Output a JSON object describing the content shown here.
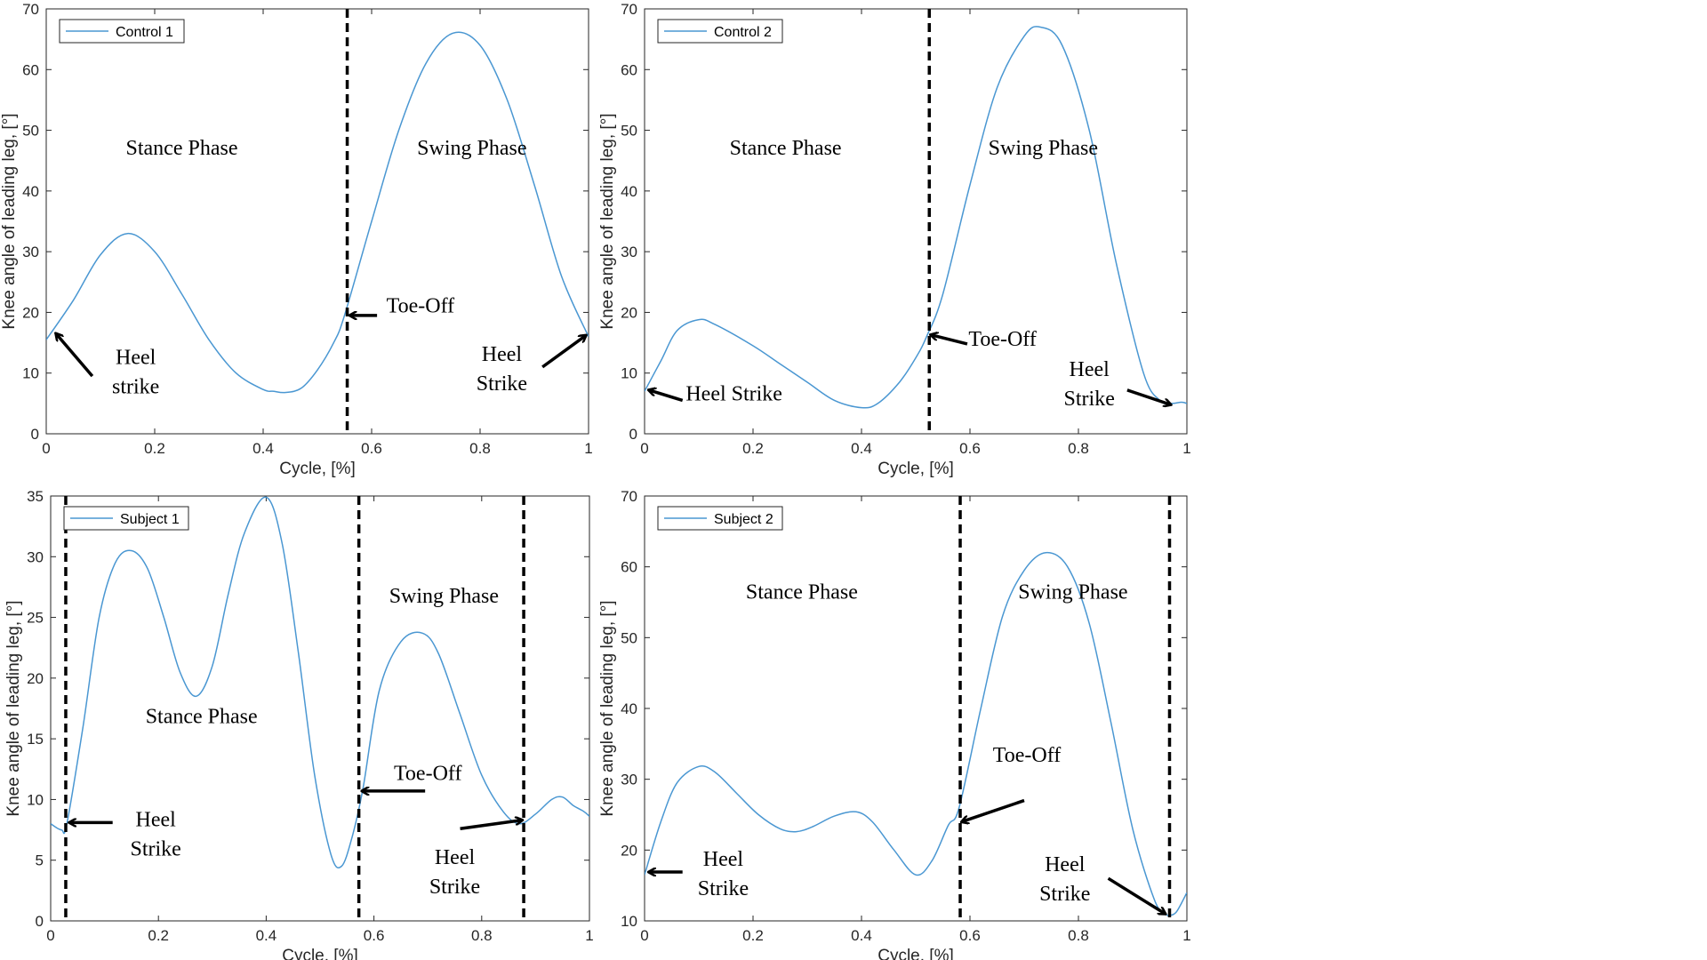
{
  "colors": {
    "line": "#4a97d2",
    "axis": "#262626",
    "annotation": "#000000"
  },
  "chart_data": [
    {
      "type": "line",
      "xlabel": "Cycle, [%]",
      "ylabel": "Knee angle of leading leg, [°]",
      "xlim": [
        0,
        1
      ],
      "ylim": [
        0,
        70
      ],
      "xticks": [
        0,
        0.2,
        0.4,
        0.6,
        0.8,
        1
      ],
      "xtick_labels": [
        "0",
        "0.2",
        "0.4",
        "0.6",
        "0.8",
        "1"
      ],
      "yticks": [
        0,
        10,
        20,
        30,
        40,
        50,
        60,
        70
      ],
      "ytick_labels": [
        "0",
        "10",
        "20",
        "30",
        "40",
        "50",
        "60",
        "70"
      ],
      "legend": "top-left",
      "grid": false,
      "series": [
        {
          "name": "Control 1",
          "x": [
            0,
            0.05,
            0.1,
            0.15,
            0.2,
            0.25,
            0.3,
            0.35,
            0.4,
            0.42,
            0.44,
            0.47,
            0.5,
            0.53,
            0.55,
            0.6,
            0.65,
            0.7,
            0.75,
            0.8,
            0.85,
            0.9,
            0.95,
            1.0
          ],
          "y": [
            15.5,
            22,
            29.5,
            33,
            30,
            23,
            15.5,
            10,
            7.3,
            7,
            6.8,
            7.5,
            10.5,
            15,
            19.5,
            35,
            50,
            61,
            66,
            64,
            55,
            41,
            26,
            16
          ]
        }
      ],
      "dividers": [
        0.555
      ],
      "annotations": [
        {
          "lines": [
            "Stance Phase"
          ],
          "x": 0.25,
          "y": 46
        },
        {
          "lines": [
            "Swing Phase"
          ],
          "x": 0.785,
          "y": 46
        },
        {
          "lines": [
            "Toe-Off"
          ],
          "x": 0.69,
          "y": 20
        },
        {
          "lines": [
            "Heel",
            "strike"
          ],
          "x": 0.165,
          "y": 11.5
        },
        {
          "lines": [
            "Heel",
            "Strike"
          ],
          "x": 0.84,
          "y": 12
        }
      ],
      "arrows": [
        {
          "from": [
            0.085,
            9.5
          ],
          "to": [
            0.018,
            16.5
          ]
        },
        {
          "from": [
            0.61,
            19.5
          ],
          "to": [
            0.56,
            19.5
          ]
        },
        {
          "from": [
            0.915,
            11
          ],
          "to": [
            0.995,
            16.2
          ]
        }
      ]
    },
    {
      "type": "line",
      "xlabel": "Cycle, [%]",
      "ylabel": "Knee angle of leading leg, [°]",
      "xlim": [
        0,
        1
      ],
      "ylim": [
        0,
        70
      ],
      "xticks": [
        0,
        0.2,
        0.4,
        0.6,
        0.8,
        1
      ],
      "xtick_labels": [
        "0",
        "0.2",
        "0.4",
        "0.6",
        "0.8",
        "1"
      ],
      "yticks": [
        0,
        10,
        20,
        30,
        40,
        50,
        60,
        70
      ],
      "ytick_labels": [
        "0",
        "10",
        "20",
        "30",
        "40",
        "50",
        "60",
        "70"
      ],
      "legend": "top-left",
      "grid": false,
      "series": [
        {
          "name": "Control 2",
          "x": [
            0,
            0.03,
            0.06,
            0.1,
            0.13,
            0.2,
            0.25,
            0.3,
            0.35,
            0.4,
            0.43,
            0.47,
            0.5,
            0.52,
            0.55,
            0.6,
            0.65,
            0.7,
            0.73,
            0.77,
            0.82,
            0.87,
            0.92,
            0.95,
            0.97,
            0.99,
            1.0
          ],
          "y": [
            7,
            12,
            17,
            18.8,
            18,
            14.5,
            11.5,
            8.5,
            5.5,
            4.3,
            5,
            8.5,
            12.5,
            16,
            23,
            41,
            57,
            65.5,
            67,
            64,
            50,
            28,
            10,
            5.5,
            5,
            5.2,
            5
          ]
        }
      ],
      "dividers": [
        0.525
      ],
      "annotations": [
        {
          "lines": [
            "Stance Phase"
          ],
          "x": 0.26,
          "y": 46
        },
        {
          "lines": [
            "Swing Phase"
          ],
          "x": 0.735,
          "y": 46
        },
        {
          "lines": [
            "Toe-Off"
          ],
          "x": 0.66,
          "y": 14.5
        },
        {
          "lines": [
            "Heel Strike"
          ],
          "x": 0.165,
          "y": 5.5
        },
        {
          "lines": [
            "Heel",
            "Strike"
          ],
          "x": 0.82,
          "y": 9.5
        }
      ],
      "arrows": [
        {
          "from": [
            0.07,
            5.5
          ],
          "to": [
            0.008,
            7.2
          ]
        },
        {
          "from": [
            0.595,
            14.8
          ],
          "to": [
            0.528,
            16.3
          ]
        },
        {
          "from": [
            0.89,
            7.2
          ],
          "to": [
            0.97,
            4.8
          ]
        }
      ]
    },
    {
      "type": "line",
      "xlabel": "Cycle, [%]",
      "ylabel": "Knee angle of leading leg, [°]",
      "xlim": [
        0,
        1
      ],
      "ylim": [
        0,
        35
      ],
      "xticks": [
        0,
        0.2,
        0.4,
        0.6,
        0.8,
        1
      ],
      "xtick_labels": [
        "0",
        "0.2",
        "0.4",
        "0.6",
        "0.8",
        "1"
      ],
      "yticks": [
        0,
        5,
        10,
        15,
        20,
        25,
        30,
        35
      ],
      "ytick_labels": [
        "0",
        "5",
        "10",
        "15",
        "20",
        "25",
        "30",
        "35"
      ],
      "legend": "top-left",
      "grid": false,
      "series": [
        {
          "name": "Subject 1",
          "x": [
            0,
            0.02,
            0.03,
            0.06,
            0.09,
            0.12,
            0.15,
            0.18,
            0.21,
            0.24,
            0.27,
            0.3,
            0.33,
            0.36,
            0.4,
            0.43,
            0.46,
            0.49,
            0.52,
            0.54,
            0.56,
            0.58,
            0.61,
            0.65,
            0.69,
            0.72,
            0.76,
            0.8,
            0.84,
            0.87,
            0.9,
            0.93,
            0.95,
            0.97,
            0.99,
            1.0
          ],
          "y": [
            8,
            7.5,
            8,
            16,
            25,
            29.5,
            30.5,
            29,
            25,
            20.5,
            18.5,
            21,
            27,
            32,
            34.9,
            31,
            22,
            12,
            5.5,
            4.5,
            7,
            11,
            19,
            23,
            23.7,
            22,
            17,
            12,
            9,
            8,
            8.8,
            10,
            10.2,
            9.5,
            9,
            8.6
          ]
        }
      ],
      "dividers": [
        0.028,
        0.572,
        0.878
      ],
      "annotations": [
        {
          "lines": [
            "Swing Phase"
          ],
          "x": 0.73,
          "y": 26.2
        },
        {
          "lines": [
            "Stance Phase"
          ],
          "x": 0.28,
          "y": 16.3
        },
        {
          "lines": [
            "Toe-Off"
          ],
          "x": 0.7,
          "y": 11.6
        },
        {
          "lines": [
            "Heel",
            "Strike"
          ],
          "x": 0.195,
          "y": 7.8
        },
        {
          "lines": [
            "Heel",
            "Strike"
          ],
          "x": 0.75,
          "y": 4.7
        }
      ],
      "arrows": [
        {
          "from": [
            0.115,
            8.1
          ],
          "to": [
            0.035,
            8.1
          ]
        },
        {
          "from": [
            0.695,
            10.7
          ],
          "to": [
            0.578,
            10.7
          ]
        },
        {
          "from": [
            0.76,
            7.6
          ],
          "to": [
            0.875,
            8.3
          ]
        }
      ]
    },
    {
      "type": "line",
      "xlabel": "Cycle, [%]",
      "ylabel": "Knee angle of leading leg, [°]",
      "xlim": [
        0,
        1
      ],
      "ylim": [
        10,
        70
      ],
      "xticks": [
        0,
        0.2,
        0.4,
        0.6,
        0.8,
        1
      ],
      "xtick_labels": [
        "0",
        "0.2",
        "0.4",
        "0.6",
        "0.8",
        "1"
      ],
      "yticks": [
        10,
        20,
        30,
        40,
        50,
        60,
        70
      ],
      "ytick_labels": [
        "10",
        "20",
        "30",
        "40",
        "50",
        "60",
        "70"
      ],
      "legend": "top-left",
      "grid": false,
      "series": [
        {
          "name": "Subject 2",
          "x": [
            0,
            0.03,
            0.06,
            0.1,
            0.13,
            0.17,
            0.21,
            0.25,
            0.28,
            0.31,
            0.35,
            0.39,
            0.42,
            0.46,
            0.5,
            0.53,
            0.56,
            0.58,
            0.62,
            0.66,
            0.7,
            0.74,
            0.78,
            0.82,
            0.86,
            0.9,
            0.94,
            0.96,
            0.97,
            0.98,
            0.99,
            1.0
          ],
          "y": [
            16.5,
            24,
            29.5,
            31.8,
            31,
            28,
            25,
            23,
            22.6,
            23.3,
            24.8,
            25.4,
            24,
            20,
            16.5,
            18.5,
            23.5,
            26,
            40,
            53,
            59.5,
            62,
            60,
            52,
            38,
            23,
            13,
            11,
            10.8,
            11.2,
            12.5,
            14
          ]
        }
      ],
      "dividers": [
        0.582,
        0.968
      ],
      "annotations": [
        {
          "lines": [
            "Stance Phase"
          ],
          "x": 0.29,
          "y": 55.5
        },
        {
          "lines": [
            "Swing Phase"
          ],
          "x": 0.79,
          "y": 55.5
        },
        {
          "lines": [
            "Toe-Off"
          ],
          "x": 0.705,
          "y": 32.5
        },
        {
          "lines": [
            "Heel",
            "Strike"
          ],
          "x": 0.145,
          "y": 17.8
        },
        {
          "lines": [
            "Heel",
            "Strike"
          ],
          "x": 0.775,
          "y": 17
        }
      ],
      "arrows": [
        {
          "from": [
            0.07,
            16.9
          ],
          "to": [
            0.008,
            16.9
          ]
        },
        {
          "from": [
            0.7,
            27
          ],
          "to": [
            0.585,
            24
          ]
        },
        {
          "from": [
            0.855,
            16
          ],
          "to": [
            0.96,
            11
          ]
        }
      ]
    }
  ]
}
